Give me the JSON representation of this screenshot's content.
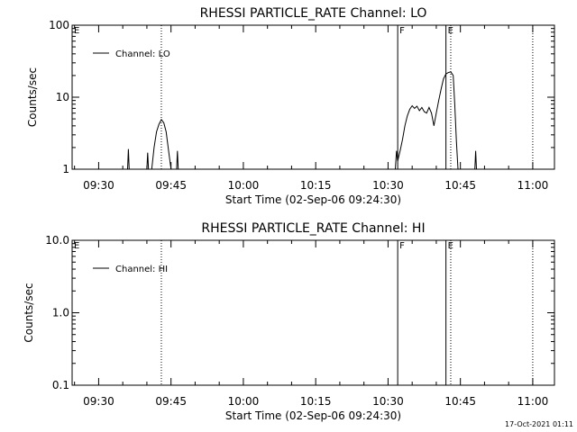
{
  "chart_data": [
    {
      "type": "line",
      "title": "RHESSI PARTICLE_RATE Channel: LO",
      "xlabel": "Start Time (02-Sep-06 09:24:30)",
      "ylabel": "Counts/sec",
      "yscale": "log",
      "ylim": [
        1,
        100
      ],
      "y_ticks": [
        1,
        10,
        100
      ],
      "y_tick_labels": [
        "1",
        "10",
        "100"
      ],
      "xlim": [
        "09:24:30",
        "11:04:30"
      ],
      "x_ticks": [
        "09:30",
        "09:45",
        "10:00",
        "10:15",
        "10:30",
        "10:45",
        "11:00"
      ],
      "legend": {
        "position": "top-left",
        "label": "Channel: LO"
      },
      "flag_markers": [
        {
          "label": "E",
          "time": "09:24:30"
        },
        {
          "label": "F",
          "time": "10:32:00"
        },
        {
          "label": "E",
          "time": "10:42:00"
        }
      ],
      "dotted_markers": [
        "09:43:00",
        "10:43:00",
        "11:00:00"
      ],
      "series": [
        {
          "name": "Channel: LO",
          "points": [
            [
              "09:36:00",
              1
            ],
            [
              "09:36:10",
              1.9
            ],
            [
              "09:36:20",
              1
            ],
            [
              "09:40:00",
              1
            ],
            [
              "09:40:10",
              1.7
            ],
            [
              "09:40:20",
              1
            ],
            [
              "09:41:00",
              1
            ],
            [
              "09:41:30",
              2.0
            ],
            [
              "09:42:00",
              3.3
            ],
            [
              "09:42:30",
              4.2
            ],
            [
              "09:43:00",
              4.9
            ],
            [
              "09:43:30",
              4.4
            ],
            [
              "09:44:00",
              3.3
            ],
            [
              "09:44:30",
              1.8
            ],
            [
              "09:45:00",
              1
            ],
            [
              "09:46:10",
              1
            ],
            [
              "09:46:20",
              1.8
            ],
            [
              "09:46:30",
              1
            ],
            [
              "10:31:30",
              1
            ],
            [
              "10:31:45",
              1.8
            ],
            [
              "10:32:00",
              1.3
            ],
            [
              "10:32:30",
              1.8
            ],
            [
              "10:33:00",
              2.6
            ],
            [
              "10:33:30",
              4.0
            ],
            [
              "10:34:00",
              5.5
            ],
            [
              "10:34:30",
              6.8
            ],
            [
              "10:35:00",
              7.6
            ],
            [
              "10:35:30",
              7.0
            ],
            [
              "10:36:00",
              7.5
            ],
            [
              "10:36:30",
              6.5
            ],
            [
              "10:37:00",
              7.2
            ],
            [
              "10:37:30",
              6.3
            ],
            [
              "10:38:00",
              6.0
            ],
            [
              "10:38:30",
              7.2
            ],
            [
              "10:39:00",
              6.0
            ],
            [
              "10:39:30",
              4.0
            ],
            [
              "10:40:00",
              6.0
            ],
            [
              "10:40:30",
              9.0
            ],
            [
              "10:41:00",
              13.0
            ],
            [
              "10:41:30",
              18.0
            ],
            [
              "10:42:00",
              21.0
            ],
            [
              "10:42:30",
              22.0
            ],
            [
              "10:43:00",
              22.5
            ],
            [
              "10:43:30",
              20.0
            ],
            [
              "10:43:50",
              8.0
            ],
            [
              "10:44:10",
              2.5
            ],
            [
              "10:44:30",
              1
            ],
            [
              "10:48:00",
              1
            ],
            [
              "10:48:10",
              1.8
            ],
            [
              "10:48:20",
              1
            ]
          ]
        }
      ]
    },
    {
      "type": "line",
      "title": "RHESSI PARTICLE_RATE Channel: HI",
      "xlabel": "Start Time (02-Sep-06 09:24:30)",
      "ylabel": "Counts/sec",
      "yscale": "log",
      "ylim": [
        0.1,
        10
      ],
      "y_ticks": [
        0.1,
        1,
        10
      ],
      "y_tick_labels": [
        "0.1",
        "1.0",
        "10.0"
      ],
      "xlim": [
        "09:24:30",
        "11:04:30"
      ],
      "x_ticks": [
        "09:30",
        "09:45",
        "10:00",
        "10:15",
        "10:30",
        "10:45",
        "11:00"
      ],
      "legend": {
        "position": "top-left",
        "label": "Channel: HI"
      },
      "flag_markers": [
        {
          "label": "E",
          "time": "09:24:30"
        },
        {
          "label": "F",
          "time": "10:32:00"
        },
        {
          "label": "E",
          "time": "10:42:00"
        }
      ],
      "dotted_markers": [
        "09:43:00",
        "10:43:00",
        "11:00:00"
      ],
      "series": [
        {
          "name": "Channel: HI",
          "points": []
        }
      ]
    }
  ],
  "footer": {
    "timestamp": "17-Oct-2021 01:11"
  }
}
